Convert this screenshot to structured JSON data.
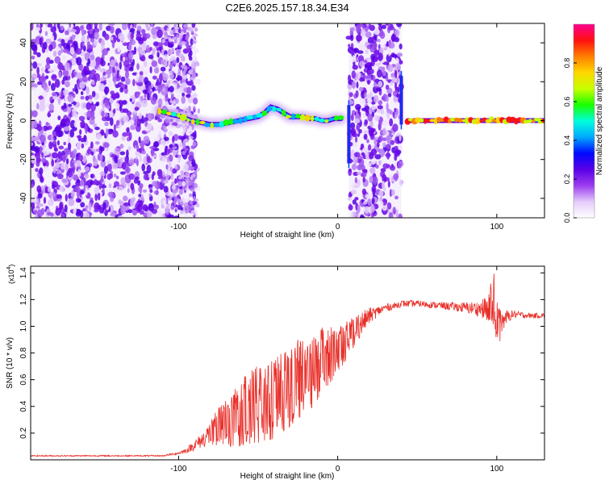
{
  "figure": {
    "title": "C2E6.2025.157.18.34.E34"
  },
  "chart_data": [
    {
      "type": "heatmap",
      "title": "C2E6.2025.157.18.34.E34",
      "xlabel": "Height of straight line (km)",
      "ylabel": "Frequency (Hz)",
      "xlim": [
        -193,
        130
      ],
      "ylim": [
        -50,
        50
      ],
      "x_ticks": [
        -100,
        0,
        100
      ],
      "y_ticks": [
        -40,
        -20,
        0,
        20,
        40
      ],
      "colorbar": {
        "label": "Normalized spectral amplitude",
        "range": [
          0,
          1
        ],
        "ticks": [
          "0.0",
          "0.2",
          "0.4",
          "0.6",
          "0.8"
        ],
        "colors": [
          "#ffffff",
          "#e4ccfa",
          "#9b3cf0",
          "#5a00e6",
          "#0008ff",
          "#00aaff",
          "#00ffdc",
          "#19ff00",
          "#c8ff00",
          "#ffd700",
          "#ff7f00",
          "#ff1010",
          "#ff0090"
        ]
      },
      "ridge": {
        "segment_1": {
          "x": [
            -112,
            -104,
            -98,
            -92,
            -86,
            -80,
            -74,
            -68,
            -62,
            -56,
            -50,
            -46,
            -42,
            -38,
            -34,
            -30,
            -26,
            -22,
            -18,
            -14,
            -10,
            -6,
            -2,
            2
          ],
          "y": [
            5,
            3,
            2,
            0,
            -1,
            -2,
            -2,
            -1,
            0,
            1,
            2,
            4,
            7,
            6,
            4,
            2,
            2,
            2,
            1,
            1,
            0,
            0,
            1,
            1
          ]
        },
        "segment_2": {
          "x": [
            44,
            60,
            80,
            100,
            120,
            130
          ],
          "y": [
            0,
            0,
            0,
            0,
            0,
            0
          ]
        },
        "transient_left": {
          "x": 7,
          "y_range": [
            -22,
            8
          ]
        },
        "transient_right": {
          "x": 40,
          "y_range": [
            -2,
            23
          ]
        }
      },
      "noise_regions": [
        {
          "x_range": [
            -193,
            -89
          ],
          "level": "dense"
        },
        {
          "x_range": [
            7,
            40
          ],
          "level": "dense"
        }
      ]
    },
    {
      "type": "line",
      "xlabel": "Height of straight line (km)",
      "ylabel": "SNR (10 * v/v)",
      "y_scale_label": "(x10",
      "y_scale_exp": "4",
      "xlim": [
        -193,
        130
      ],
      "ylim": [
        0,
        1.45
      ],
      "x_ticks": [
        -100,
        0,
        100
      ],
      "y_ticks": [
        0.2,
        0.4,
        0.6,
        0.8,
        1.0,
        1.2,
        1.4
      ],
      "y_tick_labels": [
        "0.2",
        "0.4",
        "0.6",
        "0.8",
        "1.0",
        "1.2",
        "1.4"
      ],
      "series": [
        {
          "color": "#e8302a",
          "x": [
            -193,
            -180,
            -160,
            -140,
            -120,
            -110,
            -100,
            -95,
            -90,
            -85,
            -80,
            -75,
            -70,
            -65,
            -60,
            -55,
            -50,
            -45,
            -40,
            -35,
            -30,
            -25,
            -20,
            -15,
            -10,
            -5,
            0,
            5,
            10,
            15,
            20,
            25,
            30,
            35,
            40,
            45,
            50,
            60,
            70,
            80,
            90,
            95,
            98,
            100,
            102,
            105,
            110,
            120,
            130
          ],
          "y": [
            0.03,
            0.03,
            0.03,
            0.03,
            0.03,
            0.03,
            0.05,
            0.07,
            0.11,
            0.15,
            0.2,
            0.25,
            0.28,
            0.32,
            0.36,
            0.38,
            0.41,
            0.43,
            0.46,
            0.5,
            0.55,
            0.6,
            0.63,
            0.66,
            0.74,
            0.78,
            0.82,
            0.88,
            0.96,
            1.02,
            1.08,
            1.11,
            1.14,
            1.15,
            1.17,
            1.17,
            1.17,
            1.16,
            1.15,
            1.14,
            1.13,
            1.13,
            1.18,
            1.1,
            1.0,
            1.06,
            1.09,
            1.08,
            1.08
          ],
          "noise_amplitude": [
            0.005,
            0.005,
            0.005,
            0.005,
            0.005,
            0.005,
            0.01,
            0.02,
            0.04,
            0.06,
            0.1,
            0.14,
            0.18,
            0.22,
            0.26,
            0.28,
            0.3,
            0.3,
            0.3,
            0.3,
            0.3,
            0.3,
            0.28,
            0.26,
            0.25,
            0.22,
            0.18,
            0.15,
            0.12,
            0.09,
            0.06,
            0.04,
            0.03,
            0.025,
            0.025,
            0.025,
            0.025,
            0.025,
            0.03,
            0.04,
            0.06,
            0.12,
            0.24,
            0.2,
            0.12,
            0.06,
            0.03,
            0.02,
            0.02
          ]
        }
      ]
    }
  ]
}
